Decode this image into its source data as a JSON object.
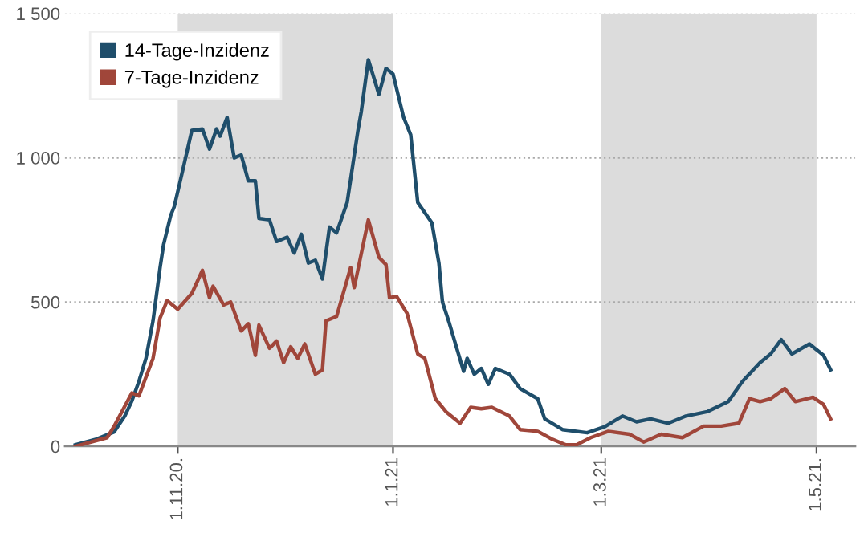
{
  "chart_data": {
    "type": "line",
    "series": [
      {
        "name": "14-Tage-Inzidenz",
        "color": "#1f4e6b",
        "x": [
          "2020-10-03",
          "2020-10-09",
          "2020-10-14",
          "2020-10-17",
          "2020-10-19",
          "2020-10-21",
          "2020-10-23",
          "2020-10-25",
          "2020-10-27",
          "2020-10-28",
          "2020-10-30",
          "2020-10-31",
          "2020-11-02",
          "2020-11-05",
          "2020-11-08",
          "2020-11-10",
          "2020-11-12",
          "2020-11-13",
          "2020-11-15",
          "2020-11-17",
          "2020-11-19",
          "2020-11-21",
          "2020-11-23",
          "2020-11-24",
          "2020-11-27",
          "2020-11-29",
          "2020-12-02",
          "2020-12-04",
          "2020-12-06",
          "2020-12-08",
          "2020-12-10",
          "2020-12-12",
          "2020-12-14",
          "2020-12-16",
          "2020-12-19",
          "2020-12-22",
          "2020-12-23",
          "2020-12-25",
          "2020-12-28",
          "2020-12-30",
          "2021-01-01",
          "2021-01-04",
          "2021-01-06",
          "2021-01-08",
          "2021-01-12",
          "2021-01-14",
          "2021-01-15",
          "2021-01-17",
          "2021-01-21",
          "2021-01-22",
          "2021-01-24",
          "2021-01-26",
          "2021-01-28",
          "2021-01-30",
          "2021-02-03",
          "2021-02-06",
          "2021-02-11",
          "2021-02-13",
          "2021-02-18",
          "2021-02-25",
          "2021-03-02",
          "2021-03-07",
          "2021-03-11",
          "2021-03-15",
          "2021-03-20",
          "2021-03-25",
          "2021-03-31",
          "2021-04-06",
          "2021-04-10",
          "2021-04-15",
          "2021-04-18",
          "2021-04-21",
          "2021-04-24",
          "2021-04-29",
          "2021-05-03",
          "2021-05-05"
        ],
        "values": [
          5,
          25,
          50,
          105,
          157,
          225,
          305,
          435,
          620,
          700,
          800,
          830,
          935,
          1095,
          1100,
          1030,
          1100,
          1075,
          1140,
          1000,
          1010,
          920,
          920,
          790,
          785,
          710,
          725,
          670,
          735,
          635,
          645,
          580,
          760,
          740,
          845,
          1090,
          1160,
          1340,
          1220,
          1310,
          1290,
          1140,
          1080,
          845,
          775,
          635,
          500,
          425,
          260,
          305,
          250,
          270,
          215,
          270,
          250,
          200,
          165,
          95,
          58,
          47,
          68,
          105,
          85,
          95,
          80,
          105,
          120,
          155,
          225,
          290,
          320,
          370,
          320,
          355,
          315,
          265
        ]
      },
      {
        "name": "7-Tage-Inzidenz",
        "color": "#a0463a",
        "x": [
          "2020-10-03",
          "2020-10-12",
          "2020-10-14",
          "2020-10-19",
          "2020-10-21",
          "2020-10-25",
          "2020-10-27",
          "2020-10-29",
          "2020-11-01",
          "2020-11-05",
          "2020-11-08",
          "2020-11-10",
          "2020-11-11",
          "2020-11-14",
          "2020-11-16",
          "2020-11-19",
          "2020-11-21",
          "2020-11-23",
          "2020-11-24",
          "2020-11-27",
          "2020-11-29",
          "2020-12-01",
          "2020-12-03",
          "2020-12-05",
          "2020-12-07",
          "2020-12-10",
          "2020-12-12",
          "2020-12-13",
          "2020-12-16",
          "2020-12-20",
          "2020-12-21",
          "2020-12-25",
          "2020-12-28",
          "2020-12-30",
          "2020-12-31",
          "2021-01-02",
          "2021-01-05",
          "2021-01-08",
          "2021-01-10",
          "2021-01-13",
          "2021-01-16",
          "2021-01-20",
          "2021-01-23",
          "2021-01-26",
          "2021-01-29",
          "2021-02-03",
          "2021-02-06",
          "2021-02-11",
          "2021-02-15",
          "2021-02-19",
          "2021-02-22",
          "2021-02-26",
          "2021-03-03",
          "2021-03-09",
          "2021-03-13",
          "2021-03-18",
          "2021-03-24",
          "2021-03-30",
          "2021-04-04",
          "2021-04-09",
          "2021-04-12",
          "2021-04-15",
          "2021-04-18",
          "2021-04-22",
          "2021-04-25",
          "2021-04-30",
          "2021-05-03",
          "2021-05-05"
        ],
        "values": [
          0,
          30,
          70,
          185,
          175,
          305,
          445,
          505,
          475,
          530,
          610,
          515,
          555,
          490,
          500,
          400,
          425,
          315,
          420,
          340,
          365,
          290,
          345,
          305,
          355,
          250,
          265,
          435,
          450,
          620,
          550,
          785,
          655,
          630,
          515,
          520,
          460,
          320,
          305,
          165,
          120,
          80,
          135,
          130,
          135,
          105,
          58,
          52,
          25,
          5,
          5,
          30,
          52,
          42,
          15,
          42,
          30,
          70,
          70,
          80,
          165,
          155,
          165,
          200,
          155,
          170,
          145,
          95
        ]
      }
    ],
    "xlim": [
      "2020-09-30",
      "2021-05-12"
    ],
    "xticks": [
      {
        "value": "2020-11-01",
        "label": "1.11.20."
      },
      {
        "value": "2021-01-01",
        "label": "1.1.21"
      },
      {
        "value": "2021-03-01",
        "label": "1.3.21"
      },
      {
        "value": "2021-05-01",
        "label": "1.5.21."
      }
    ],
    "ylim": [
      0,
      1500
    ],
    "yticks": [
      0,
      500,
      {
        "value": 1000,
        "label": "1 000"
      },
      {
        "value": 1500,
        "label": "1 500"
      }
    ],
    "bands": [
      {
        "axis": "x",
        "from": "2020-11-01",
        "to": "2021-01-01",
        "color": "#dcdcdc"
      },
      {
        "axis": "x",
        "from": "2021-03-01",
        "to": "2021-05-01",
        "color": "#dcdcdc"
      }
    ],
    "grid": "y",
    "legend": "top left",
    "line_style": "solid",
    "marker": "none"
  }
}
